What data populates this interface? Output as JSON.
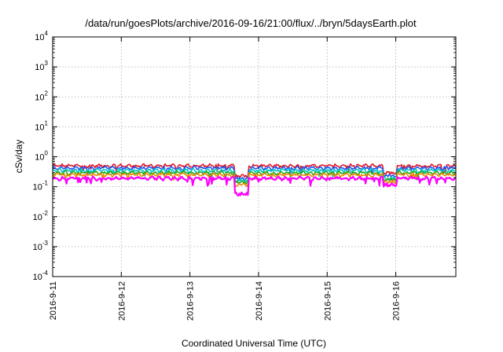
{
  "chart_data": {
    "type": "line",
    "title": "/data/run/goesPlots/archive/2016-09-16/21:00/flux/../bryn/5daysEarth.plot",
    "xlabel": "Coordinated Universal Time (UTC)",
    "ylabel": "cSv/day",
    "x_type": "date",
    "xlim": [
      "2016-09-11 00:00",
      "2016-09-16 21:00"
    ],
    "x_ticks": [
      "2016-9-11",
      "2016-9-12",
      "2016-9-13",
      "2016-9-14",
      "2016-9-15",
      "2016-9-16"
    ],
    "y_scale": "log",
    "ylim": [
      0.0001,
      10000
    ],
    "y_ticks": [
      {
        "base": "10",
        "exp": "-4"
      },
      {
        "base": "10",
        "exp": "-3"
      },
      {
        "base": "10",
        "exp": "-2"
      },
      {
        "base": "10",
        "exp": "-1"
      },
      {
        "base": "10",
        "exp": "0"
      },
      {
        "base": "10",
        "exp": "1"
      },
      {
        "base": "10",
        "exp": "2"
      },
      {
        "base": "10",
        "exp": "3"
      },
      {
        "base": "10",
        "exp": "4"
      }
    ],
    "grid": true,
    "series": [
      {
        "color": "#e0182a",
        "base": 0.5,
        "dips": [
          {
            "x": "2016-09-13 18:00",
            "y": 0.2
          },
          {
            "x": "2016-09-15 22:00",
            "y": 0.25
          }
        ]
      },
      {
        "color": "#2255ee",
        "base": 0.42,
        "dips": [
          {
            "x": "2016-09-13 18:00",
            "y": 0.16
          },
          {
            "x": "2016-09-15 22:00",
            "y": 0.2
          }
        ]
      },
      {
        "color": "#00c8c8",
        "base": 0.35,
        "dips": [
          {
            "x": "2016-09-13 18:00",
            "y": 0.14
          },
          {
            "x": "2016-09-15 22:00",
            "y": 0.17
          }
        ]
      },
      {
        "color": "#22aa22",
        "base": 0.29,
        "dips": [
          {
            "x": "2016-09-13 18:00",
            "y": 0.12
          },
          {
            "x": "2016-09-15 22:00",
            "y": 0.15
          }
        ]
      },
      {
        "color": "#ee8800",
        "base": 0.25,
        "dips": [
          {
            "x": "2016-09-13 18:00",
            "y": 0.1
          },
          {
            "x": "2016-09-15 22:00",
            "y": 0.13
          }
        ]
      },
      {
        "color": "#ff00ff",
        "base": 0.19,
        "dips": [
          {
            "x": "2016-09-13 18:00",
            "y": 0.05
          },
          {
            "x": "2016-09-15 22:00",
            "y": 0.1
          }
        ]
      }
    ]
  }
}
